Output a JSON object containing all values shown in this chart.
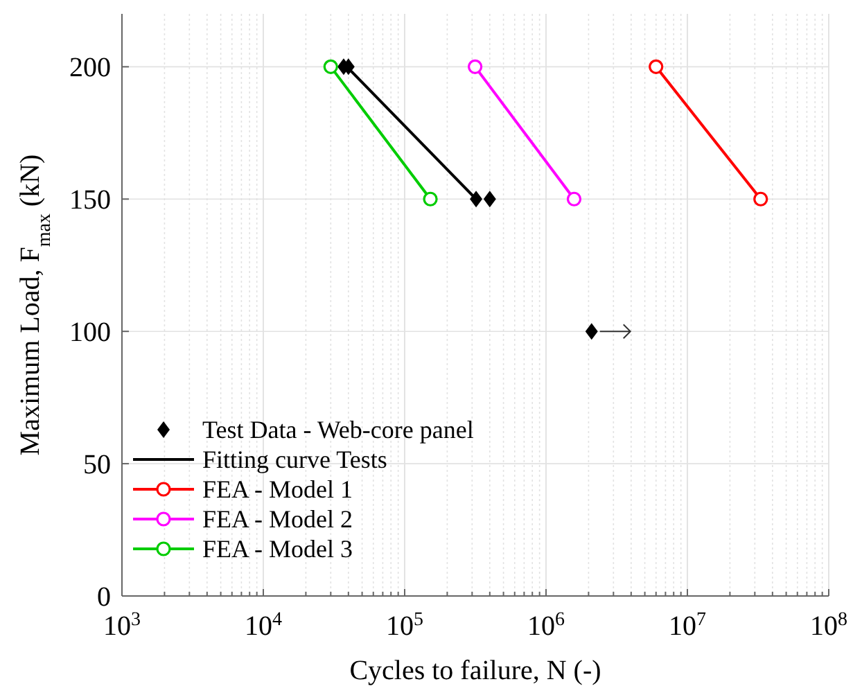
{
  "chart_data": {
    "type": "line",
    "xlabel": "Cycles to failure, N (-)",
    "ylabel": "Maximum Load, F$_{max}$  (kN)",
    "log": "x",
    "grid": true,
    "legend": "bottom left",
    "xlim": [
      1000,
      100000000
    ],
    "ylim": [
      0,
      220
    ],
    "xticks": [
      {
        "value": 1000,
        "label": "10$^{3}$"
      },
      {
        "value": 2000,
        "label": null
      },
      {
        "value": 3000,
        "label": null
      },
      {
        "value": 4000,
        "label": null
      },
      {
        "value": 5000,
        "label": null
      },
      {
        "value": 6000,
        "label": null
      },
      {
        "value": 7000,
        "label": null
      },
      {
        "value": 8000,
        "label": null
      },
      {
        "value": 9000,
        "label": null
      },
      {
        "value": 10000,
        "label": "10$^{4}$"
      },
      {
        "value": 20000,
        "label": null
      },
      {
        "value": 30000,
        "label": null
      },
      {
        "value": 40000,
        "label": null
      },
      {
        "value": 50000,
        "label": null
      },
      {
        "value": 60000,
        "label": null
      },
      {
        "value": 70000,
        "label": null
      },
      {
        "value": 80000,
        "label": null
      },
      {
        "value": 90000,
        "label": null
      },
      {
        "value": 100000,
        "label": "10$^{5}$"
      },
      {
        "value": 200000,
        "label": null
      },
      {
        "value": 300000,
        "label": null
      },
      {
        "value": 400000,
        "label": null
      },
      {
        "value": 500000,
        "label": null
      },
      {
        "value": 600000,
        "label": null
      },
      {
        "value": 700000,
        "label": null
      },
      {
        "value": 800000,
        "label": null
      },
      {
        "value": 900000,
        "label": null
      },
      {
        "value": 1000000,
        "label": "10$^{6}$"
      },
      {
        "value": 2000000,
        "label": null
      },
      {
        "value": 3000000,
        "label": null
      },
      {
        "value": 4000000,
        "label": null
      },
      {
        "value": 5000000,
        "label": null
      },
      {
        "value": 6000000,
        "label": null
      },
      {
        "value": 7000000,
        "label": null
      },
      {
        "value": 8000000,
        "label": null
      },
      {
        "value": 9000000,
        "label": null
      },
      {
        "value": 10000000,
        "label": "10$^{7}$"
      },
      {
        "value": 20000000,
        "label": null
      },
      {
        "value": 30000000,
        "label": null
      },
      {
        "value": 40000000,
        "label": null
      },
      {
        "value": 50000000,
        "label": null
      },
      {
        "value": 60000000,
        "label": null
      },
      {
        "value": 70000000,
        "label": null
      },
      {
        "value": 80000000,
        "label": null
      },
      {
        "value": 90000000,
        "label": null
      },
      {
        "value": 100000000,
        "label": "10$^{8}$"
      }
    ],
    "yticks": [
      0,
      50,
      100,
      150,
      200
    ],
    "series": [
      {
        "name": "Test Data - Web-core panel",
        "type": "scatter",
        "marker": "diamond",
        "color": "#000000",
        "x": [
          37000,
          40000,
          320000,
          400000,
          2100000
        ],
        "values": [
          200,
          200,
          150,
          150,
          100
        ]
      },
      {
        "name": "Fitting curve Tests",
        "marker": "none",
        "color": "#000000",
        "x": [
          39000,
          320000
        ],
        "values": [
          200,
          150
        ]
      },
      {
        "name": "FEA - Model 1",
        "marker": "circle",
        "color": "#ff0000",
        "x": [
          6000000,
          33000000
        ],
        "values": [
          200,
          150
        ]
      },
      {
        "name": "FEA - Model 2",
        "marker": "circle",
        "color": "#ff00ff",
        "x": [
          315000,
          1580000
        ],
        "values": [
          200,
          150
        ]
      },
      {
        "name": "FEA - Model 3",
        "marker": "circle",
        "color": "#00cc00",
        "x": [
          30000,
          152000
        ],
        "values": [
          200,
          150
        ]
      }
    ]
  }
}
